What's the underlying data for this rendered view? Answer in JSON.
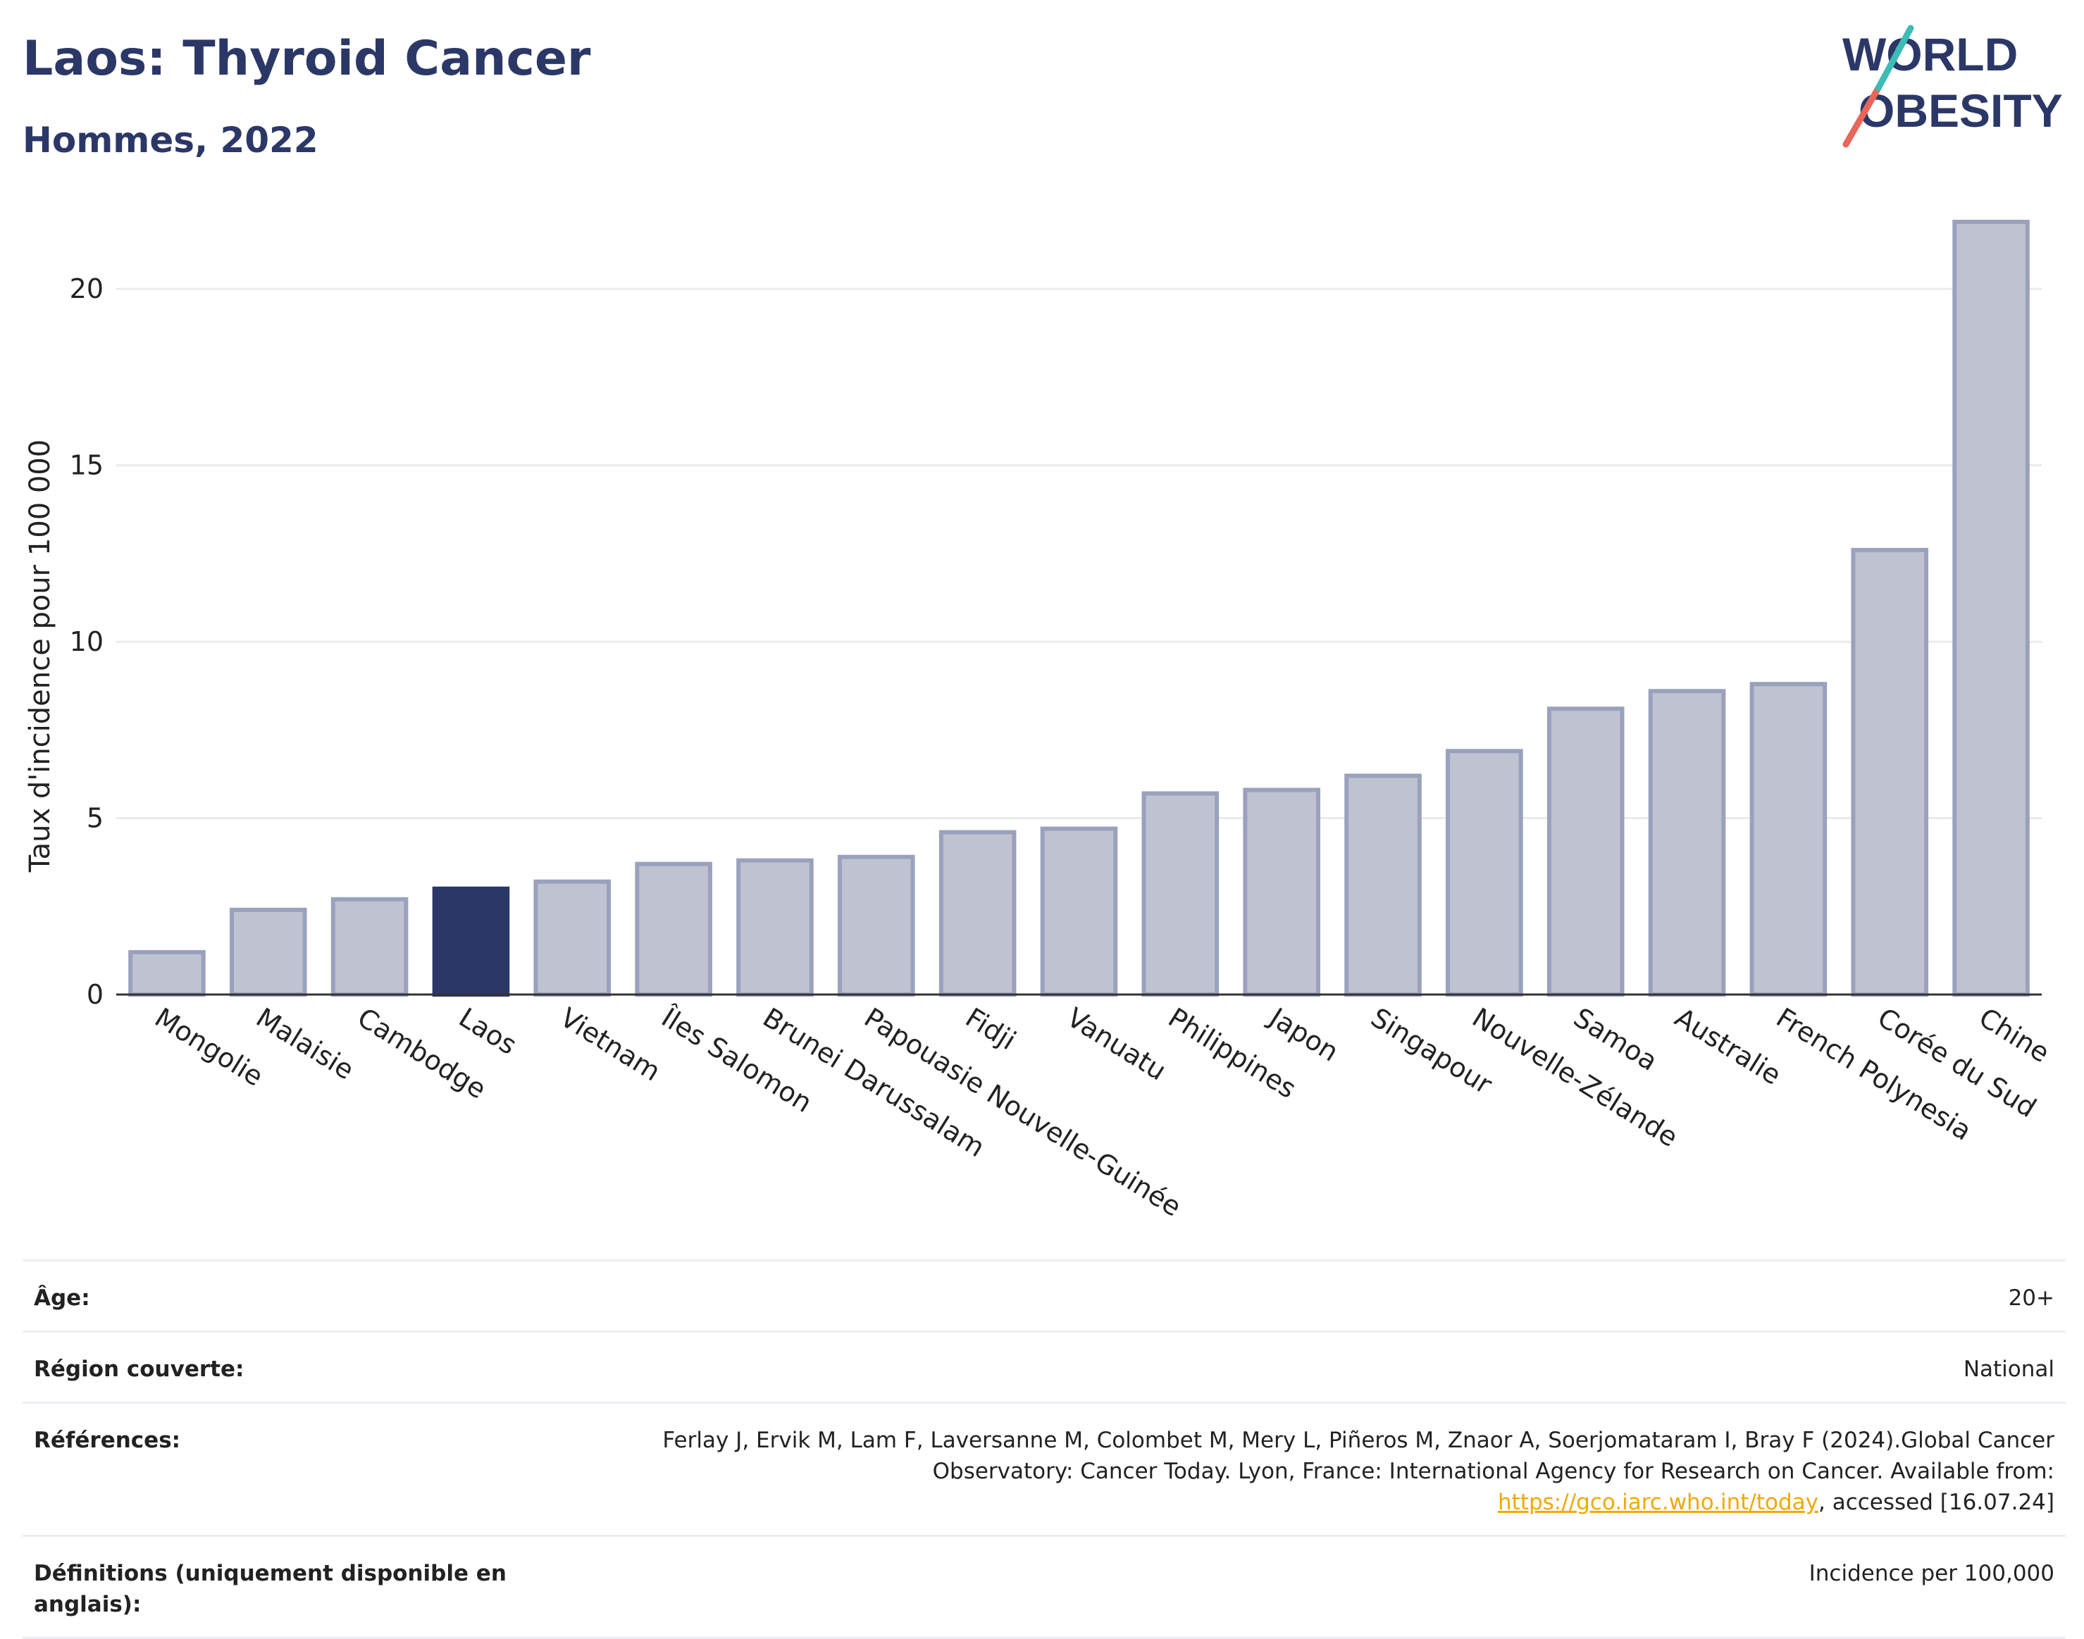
{
  "header": {
    "title": "Laos: Thyroid Cancer",
    "subtitle": "Hommes, 2022"
  },
  "logo": {
    "line1": "WORLD",
    "line2": "OBESITY"
  },
  "colors": {
    "highlight": "#2b3867",
    "bar_fill": "#bfc3d1",
    "bar_stroke": "#9aa1bd",
    "grid": "#ebebeb",
    "title": "#2b3867",
    "logo_teal": "#3cbcb4",
    "logo_red": "#e8665a"
  },
  "chart_data": {
    "type": "bar",
    "ylabel": "Taux d'incidence pour 100 000",
    "ylim": [
      0,
      22
    ],
    "yticks": [
      0,
      5,
      10,
      15,
      20
    ],
    "grid": true,
    "highlight": "Laos",
    "categories": [
      "Mongolie",
      "Malaisie",
      "Cambodge",
      "Laos",
      "Vietnam",
      "Îles Salomon",
      "Brunei Darussalam",
      "Papouasie Nouvelle-Guinée",
      "Fidji",
      "Vanuatu",
      "Philippines",
      "Japon",
      "Singapour",
      "Nouvelle-Zélande",
      "Samoa",
      "Australie",
      "French Polynesia",
      "Corée du Sud",
      "Chine"
    ],
    "values": [
      1.2,
      2.4,
      2.7,
      3.0,
      3.2,
      3.7,
      3.8,
      3.9,
      4.6,
      4.7,
      5.7,
      5.8,
      6.2,
      6.9,
      8.1,
      8.6,
      8.8,
      12.6,
      21.9
    ]
  },
  "references": {
    "rows": [
      {
        "label": "Âge:",
        "value": "20+"
      },
      {
        "label": "Région couverte:",
        "value": "National"
      },
      {
        "label": "Références:",
        "value_pre": "Ferlay J, Ervik M, Lam F, Laversanne M, Colombet M, Mery L, Piñeros M, Znaor A, Soerjomataram I, Bray F (2024).Global Cancer Observatory: Cancer Today. Lyon, France: International Agency for Research on Cancer. Available from: ",
        "link": "https://gco.iarc.who.int/today",
        "value_post": ", accessed [16.07.24]"
      },
      {
        "label": "Définitions (uniquement disponible en anglais):",
        "value": "Incidence per 100,000"
      }
    ]
  }
}
